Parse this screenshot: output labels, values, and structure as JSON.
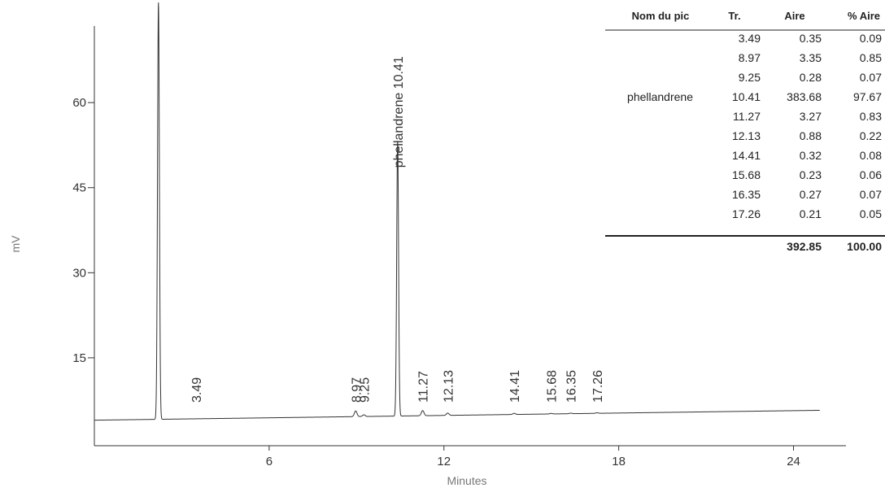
{
  "chart_data": {
    "type": "line",
    "xlabel": "Minutes",
    "ylabel": "mV",
    "xlim": [
      0,
      25.8
    ],
    "ylim": [
      -0.5,
      73.5
    ],
    "x_ticks": [
      6,
      12,
      18,
      24
    ],
    "y_ticks": [
      15,
      30,
      45,
      60
    ],
    "baseline_mV": 4,
    "solvent_peak": {
      "x": 2.2,
      "height_mV": 73.5
    },
    "peaks": [
      {
        "rt": 3.49,
        "height_mV": 0,
        "label": "3.49"
      },
      {
        "rt": 8.97,
        "height_mV": 1.0,
        "label": "8.97"
      },
      {
        "rt": 9.25,
        "height_mV": 0.3,
        "label": "9.25"
      },
      {
        "rt": 10.41,
        "height_mV": 48.5,
        "label": "phellandrene 10.41"
      },
      {
        "rt": 11.27,
        "height_mV": 0.9,
        "label": "11.27"
      },
      {
        "rt": 12.13,
        "height_mV": 0.4,
        "label": "12.13"
      },
      {
        "rt": 14.41,
        "height_mV": 0.2,
        "label": "14.41"
      },
      {
        "rt": 15.68,
        "height_mV": 0.1,
        "label": "15.68"
      },
      {
        "rt": 16.35,
        "height_mV": 0.1,
        "label": "16.35"
      },
      {
        "rt": 17.26,
        "height_mV": 0.1,
        "label": "17.26"
      }
    ]
  },
  "peak_table": {
    "headers": [
      "Nom du pic",
      "Tr.",
      "Aire",
      "% Aire"
    ],
    "rows": [
      {
        "name": "",
        "tr": "3.49",
        "aire": "0.35",
        "pct": "0.09"
      },
      {
        "name": "",
        "tr": "8.97",
        "aire": "3.35",
        "pct": "0.85"
      },
      {
        "name": "",
        "tr": "9.25",
        "aire": "0.28",
        "pct": "0.07"
      },
      {
        "name": "phellandrene",
        "tr": "10.41",
        "aire": "383.68",
        "pct": "97.67"
      },
      {
        "name": "",
        "tr": "11.27",
        "aire": "3.27",
        "pct": "0.83"
      },
      {
        "name": "",
        "tr": "12.13",
        "aire": "0.88",
        "pct": "0.22"
      },
      {
        "name": "",
        "tr": "14.41",
        "aire": "0.32",
        "pct": "0.08"
      },
      {
        "name": "",
        "tr": "15.68",
        "aire": "0.23",
        "pct": "0.06"
      },
      {
        "name": "",
        "tr": "16.35",
        "aire": "0.27",
        "pct": "0.07"
      },
      {
        "name": "",
        "tr": "17.26",
        "aire": "0.21",
        "pct": "0.05"
      }
    ],
    "totals": {
      "aire": "392.85",
      "pct": "100.00"
    }
  }
}
